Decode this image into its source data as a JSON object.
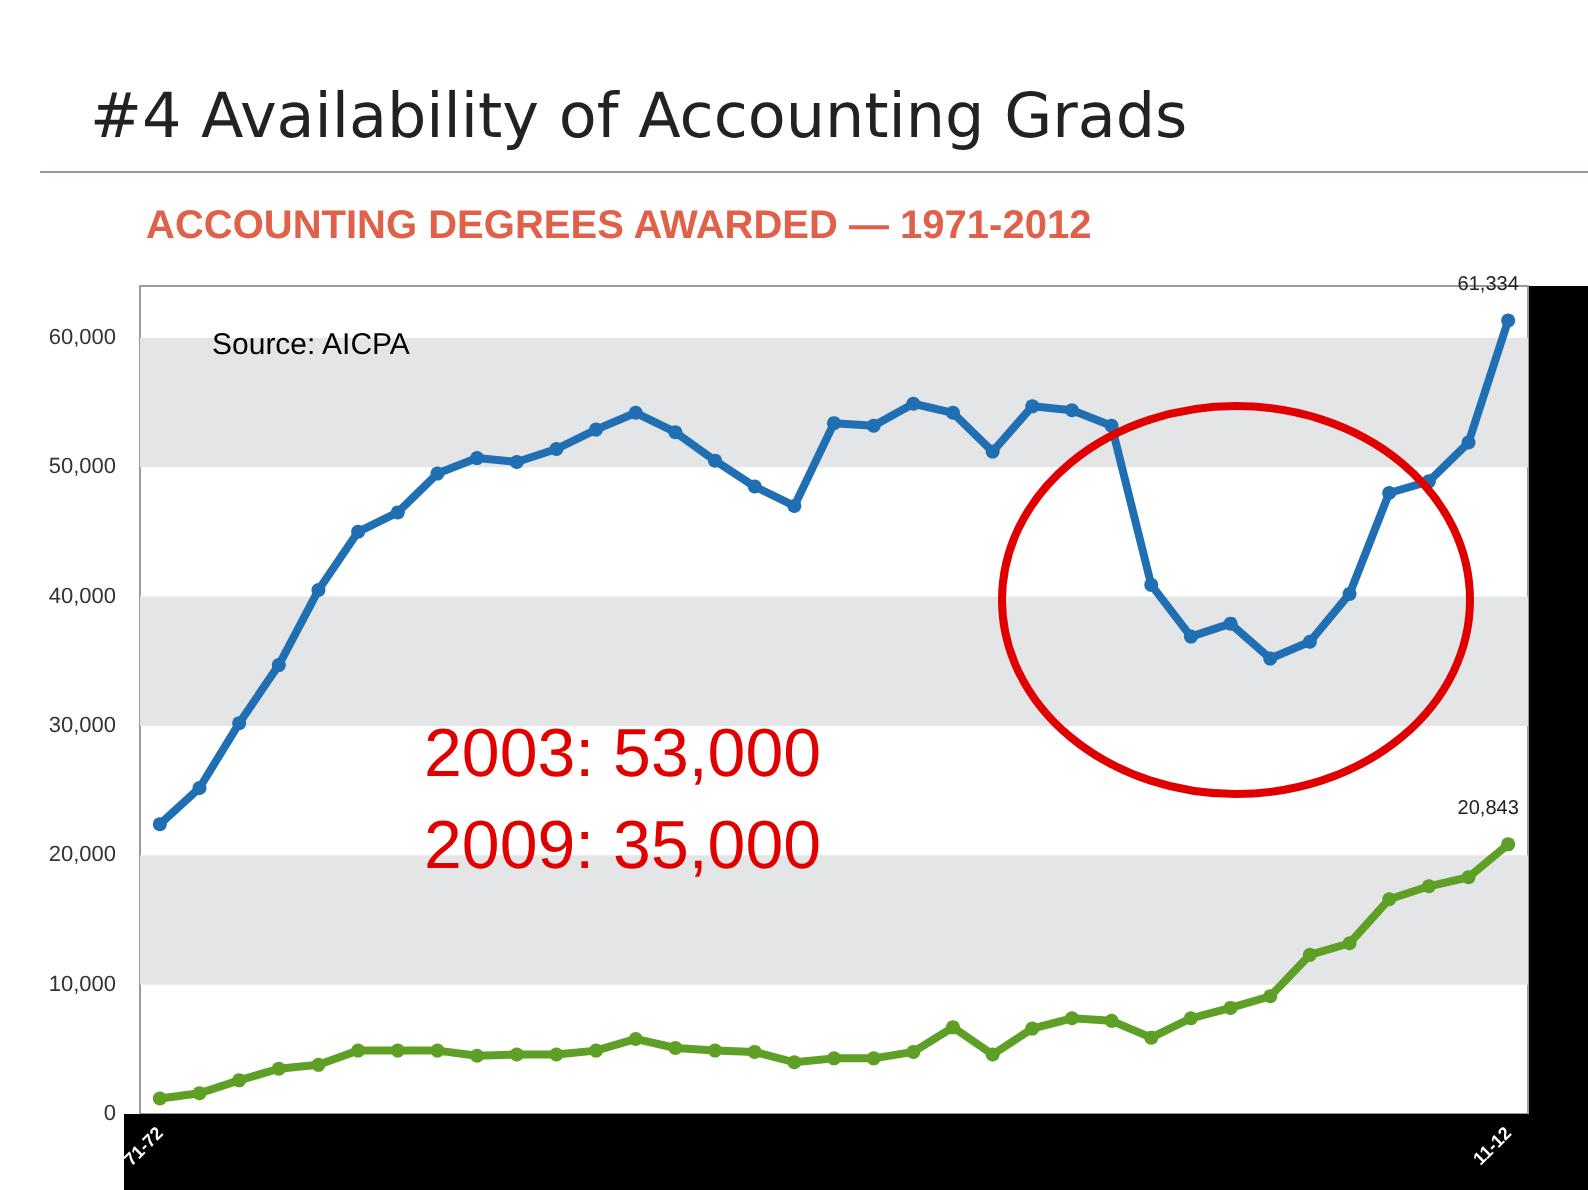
{
  "chart_data": {
    "type": "line",
    "title": "#4 Availability of Accounting Grads",
    "subtitle": "ACCOUNTING DEGREES AWARDED — 1971-2012",
    "categories": [
      "71-72",
      null,
      null,
      null,
      null,
      null,
      null,
      null,
      null,
      null,
      null,
      null,
      null,
      null,
      null,
      null,
      null,
      null,
      null,
      null,
      null,
      null,
      null,
      null,
      null,
      null,
      null,
      null,
      null,
      null,
      null,
      null,
      null,
      null,
      "11-12"
    ],
    "series": [
      {
        "color": "#1f6fb2",
        "values": [
          22400,
          25200,
          30200,
          34700,
          40500,
          45000,
          46500,
          49500,
          50700,
          50400,
          51400,
          52900,
          54200,
          52700,
          50500,
          48500,
          47000,
          53400,
          53200,
          54900,
          54200,
          51200,
          54700,
          54400,
          53200,
          40900,
          36900,
          37900,
          35200,
          36500,
          40200,
          48000,
          48900,
          51900,
          61334
        ],
        "value_labels": [
          null,
          null,
          null,
          null,
          null,
          null,
          null,
          null,
          null,
          null,
          null,
          null,
          null,
          null,
          null,
          null,
          null,
          null,
          null,
          null,
          null,
          null,
          null,
          null,
          null,
          null,
          null,
          null,
          null,
          null,
          null,
          null,
          null,
          null,
          "61,334"
        ]
      },
      {
        "color": "#5ea025",
        "values": [
          1200,
          1600,
          2600,
          3500,
          3800,
          4900,
          4900,
          4900,
          4500,
          4600,
          4600,
          4900,
          5800,
          5100,
          4900,
          4800,
          4000,
          4300,
          4300,
          4800,
          6700,
          4600,
          6600,
          7400,
          7200,
          5900,
          7400,
          8200,
          9100,
          12300,
          13200,
          16600,
          17600,
          18300,
          20843
        ],
        "value_labels": [
          null,
          null,
          null,
          null,
          null,
          null,
          null,
          null,
          null,
          null,
          null,
          null,
          null,
          null,
          null,
          null,
          null,
          null,
          null,
          null,
          null,
          null,
          null,
          null,
          null,
          null,
          null,
          null,
          null,
          null,
          null,
          null,
          null,
          null,
          "20,843"
        ]
      }
    ],
    "ylim": [
      0,
      64000
    ],
    "yticks": [
      0,
      {
        "value": 10000,
        "label": "10,000"
      },
      {
        "value": 20000,
        "label": "20,000"
      },
      {
        "value": 30000,
        "label": "30,000"
      },
      {
        "value": 40000,
        "label": "40,000"
      },
      {
        "value": 50000,
        "label": "50,000"
      },
      {
        "value": 60000,
        "label": "60,000"
      }
    ],
    "bands": [
      {
        "axis": "y",
        "from": 10000,
        "to": 20000,
        "color": "#e4e5e7"
      },
      {
        "axis": "y",
        "from": 30000,
        "to": 40000,
        "color": "#e4e5e7"
      },
      {
        "axis": "y",
        "from": 50000,
        "to": 60000,
        "color": "#e4e5e7"
      }
    ],
    "marker": "circle",
    "line_style": "solid",
    "annotations": [
      "Source: AICPA",
      "2003: 53,000",
      "2009: 35,000"
    ]
  }
}
